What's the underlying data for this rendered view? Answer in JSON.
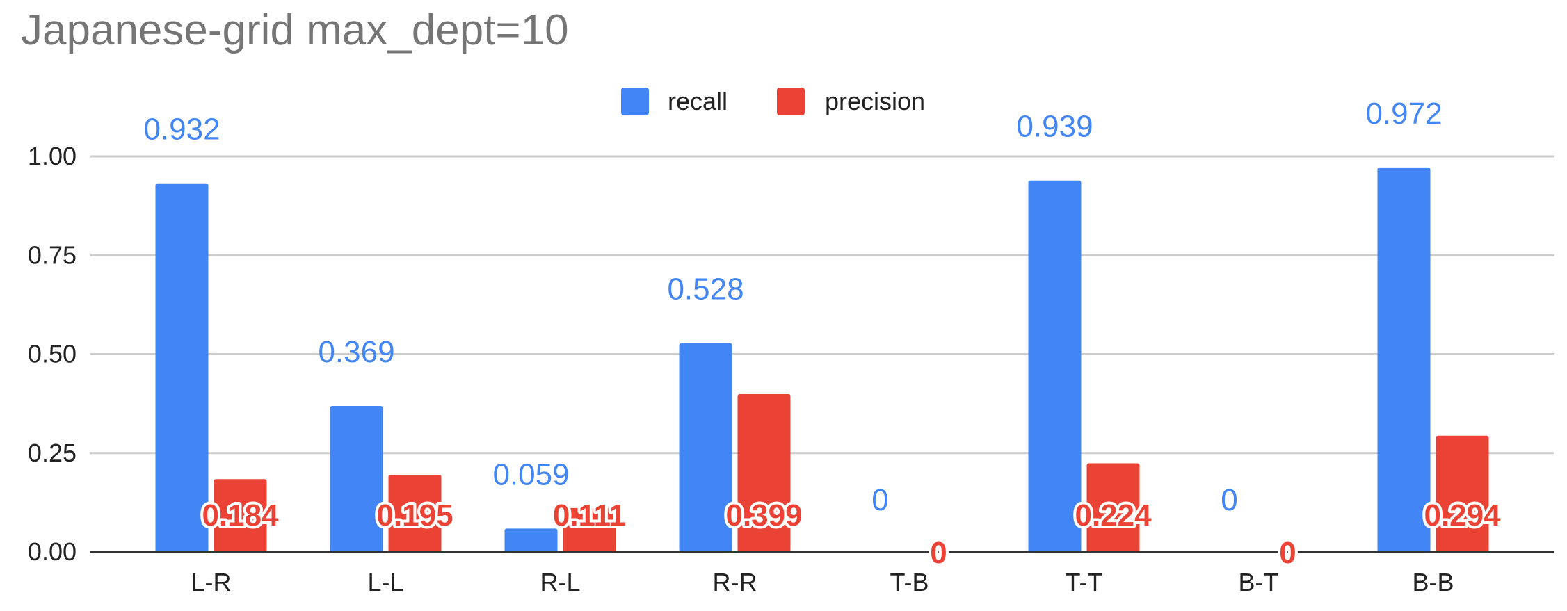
{
  "chart_data": {
    "type": "bar",
    "title": "Japanese-grid max_dept=10",
    "categories": [
      "L-R",
      "L-L",
      "R-L",
      "R-R",
      "T-B",
      "T-T",
      "B-T",
      "B-B"
    ],
    "series": [
      {
        "name": "recall",
        "color": "#4285f4",
        "values": [
          0.932,
          0.369,
          0.059,
          0.528,
          0,
          0.939,
          0,
          0.972
        ],
        "labels": [
          "0.932",
          "0.369",
          "0.059",
          "0.528",
          "0",
          "0.939",
          "0",
          "0.972"
        ]
      },
      {
        "name": "precision",
        "color": "#ea4335",
        "values": [
          0.184,
          0.195,
          0.111,
          0.399,
          0,
          0.224,
          0,
          0.294
        ],
        "labels": [
          "0.184",
          "0.195",
          "0.111",
          "0.399",
          "0",
          "0.224",
          "0",
          "0.294"
        ]
      }
    ],
    "ylim": [
      0,
      1
    ],
    "yticks": [
      "0.00",
      "0.25",
      "0.50",
      "0.75",
      "1.00"
    ],
    "grid": true,
    "legend_position": "top-center"
  }
}
